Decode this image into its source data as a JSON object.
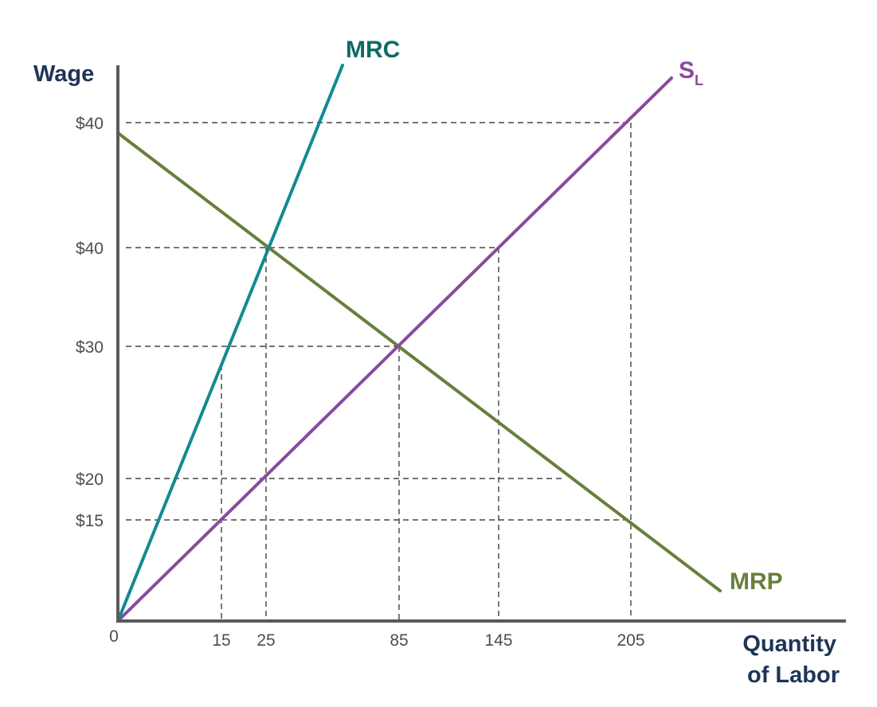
{
  "chart_data": {
    "type": "line",
    "ylabel": "Wage",
    "xlabel_line1": "Quantity",
    "xlabel_line2": "of Labor",
    "origin_label": "0",
    "x_ticks": [
      {
        "value": 15,
        "label": "15"
      },
      {
        "value": 25,
        "label": "25"
      },
      {
        "value": 85,
        "label": "85"
      },
      {
        "value": 145,
        "label": "145"
      },
      {
        "value": 205,
        "label": "205"
      }
    ],
    "y_ticks": [
      {
        "key": "w15",
        "label": "$15"
      },
      {
        "key": "w20",
        "label": "$20"
      },
      {
        "key": "w30",
        "label": "$30"
      },
      {
        "key": "w40a",
        "label": "$40"
      },
      {
        "key": "w40b",
        "label": "$40"
      }
    ],
    "series": [
      {
        "name": "MRC",
        "color": "#138a93",
        "label_color": "#0f6a64",
        "points": [
          [
            0,
            "origin"
          ],
          [
            46.5,
            "top"
          ]
        ]
      },
      {
        "name": "S",
        "subscript": "L",
        "color": "#8a4a9c",
        "label_color": "#8a4a9c",
        "points": [
          [
            0,
            "origin"
          ],
          [
            215,
            "top"
          ]
        ]
      },
      {
        "name": "MRP",
        "color": "#66803a",
        "label_color": "#66803a",
        "points": [
          [
            0,
            "start"
          ],
          [
            248,
            "end"
          ]
        ]
      }
    ],
    "grid": false,
    "legend": "inline-labels"
  }
}
